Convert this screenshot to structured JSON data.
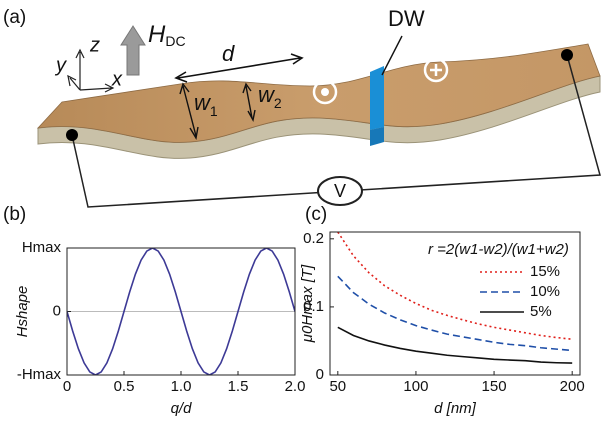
{
  "panel_a": {
    "label": "(a)",
    "axes": {
      "x": "x",
      "y": "y",
      "z": "z"
    },
    "field": {
      "symbol": "H",
      "sub": "DC"
    },
    "d": "d",
    "w1": {
      "symbol": "w",
      "sub": "1"
    },
    "w2": {
      "symbol": "w",
      "sub": "2"
    },
    "dw": "DW",
    "voltmeter": "V"
  },
  "chart_data": [
    {
      "type": "line",
      "panel_label": "(b)",
      "x_label": "q/d",
      "y_label": "Hshape",
      "x": [
        0,
        0.05,
        0.1,
        0.15,
        0.2,
        0.25,
        0.3,
        0.35,
        0.4,
        0.45,
        0.5,
        0.55,
        0.6,
        0.65,
        0.7,
        0.75,
        0.8,
        0.85,
        0.9,
        0.95,
        1,
        1.05,
        1.1,
        1.15,
        1.2,
        1.25,
        1.3,
        1.35,
        1.4,
        1.45,
        1.5,
        1.55,
        1.6,
        1.65,
        1.7,
        1.75,
        1.8,
        1.85,
        1.9,
        1.95,
        2
      ],
      "series": [
        {
          "color": "#3d3a96",
          "line_style": "solid",
          "values": [
            0,
            -0.309,
            -0.588,
            -0.809,
            -0.951,
            -1,
            -0.951,
            -0.809,
            -0.588,
            -0.309,
            0,
            0.309,
            0.588,
            0.809,
            0.951,
            1,
            0.951,
            0.809,
            0.588,
            0.309,
            0,
            -0.309,
            -0.588,
            -0.809,
            -0.951,
            -1,
            -0.951,
            -0.809,
            -0.588,
            -0.309,
            0,
            0.309,
            0.588,
            0.809,
            0.951,
            1,
            0.951,
            0.809,
            0.588,
            0.309,
            0
          ]
        }
      ],
      "xlim": [
        0,
        2
      ],
      "xticks": [
        0,
        0.5,
        {
          "value": 1,
          "label": "1.0"
        },
        1.5,
        {
          "value": 2,
          "label": "2.0"
        }
      ],
      "ylim": [
        -1,
        1
      ],
      "yticks": [
        {
          "value": -1,
          "label": "-Hmax"
        },
        0,
        {
          "value": 1,
          "label": "Hmax"
        }
      ],
      "zero_line": true
    },
    {
      "type": "line",
      "panel_label": "(c)",
      "x_label": "d [nm]",
      "y_label": "μ0Hmax [T]",
      "x": [
        50,
        60,
        70,
        80,
        90,
        100,
        110,
        120,
        130,
        140,
        150,
        160,
        170,
        180,
        190,
        200
      ],
      "legend": "upper right",
      "legend_title": "r =2(w1-w2)/(w1+w2)",
      "series": [
        {
          "name": "15%",
          "color": "#e0201b",
          "line_style": "dotted",
          "values": [
            0.21,
            0.175,
            0.15,
            0.131,
            0.117,
            0.105,
            0.095,
            0.0875,
            0.081,
            0.075,
            0.07,
            0.066,
            0.062,
            0.058,
            0.055,
            0.0525
          ]
        },
        {
          "name": "10%",
          "color": "#1f4fa8",
          "line_style": "dashed",
          "values": [
            0.145,
            0.121,
            0.104,
            0.091,
            0.081,
            0.0725,
            0.066,
            0.06,
            0.056,
            0.052,
            0.048,
            0.045,
            0.043,
            0.04,
            0.038,
            0.036
          ]
        },
        {
          "name": "5%",
          "color": "#111111",
          "line_style": "solid",
          "values": [
            0.07,
            0.058,
            0.05,
            0.044,
            0.039,
            0.035,
            0.032,
            0.029,
            0.027,
            0.025,
            0.023,
            0.022,
            0.021,
            0.019,
            0.018,
            0.0175
          ]
        }
      ],
      "xlim": [
        45,
        205
      ],
      "xticks": [
        50,
        100,
        150,
        200
      ],
      "ylim": [
        0,
        0.21
      ],
      "yticks": [
        0,
        0.1,
        0.2
      ]
    }
  ]
}
